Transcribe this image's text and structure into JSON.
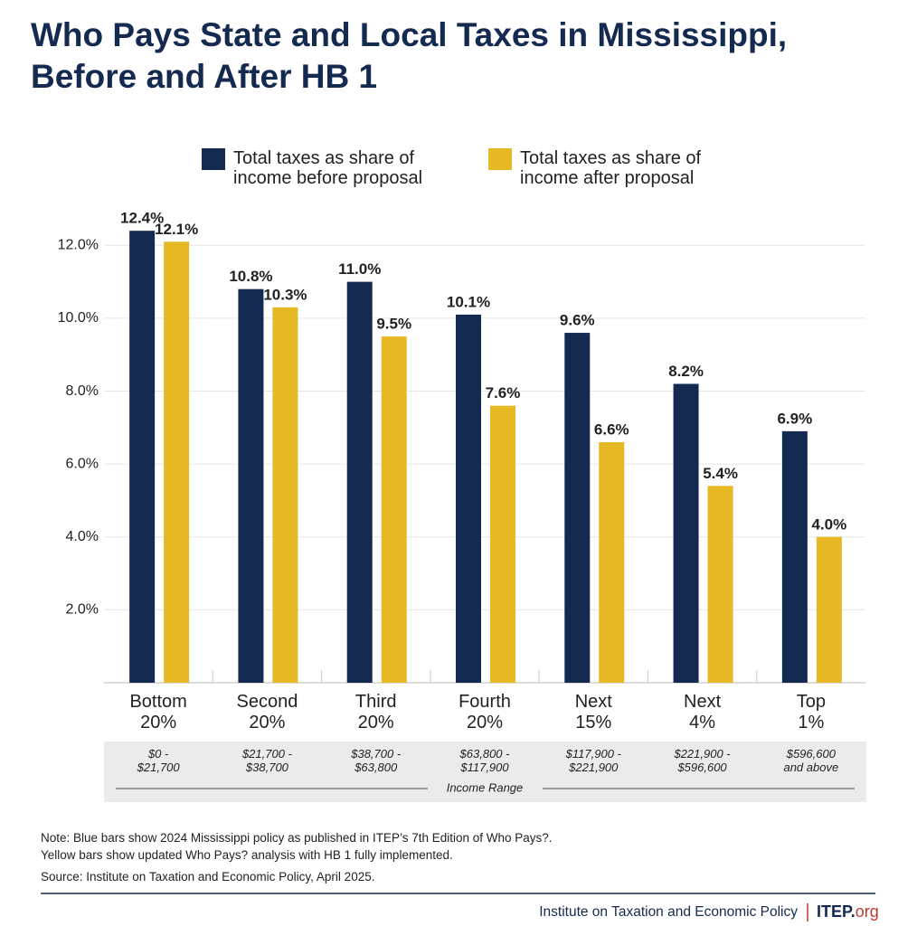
{
  "chart_data": {
    "type": "bar",
    "title": "Who Pays State and Local Taxes in Mississippi, Before and After HB 1",
    "categories": [
      "Bottom 20%",
      "Second 20%",
      "Third 20%",
      "Fourth 20%",
      "Next 15%",
      "Next 4%",
      "Top 1%"
    ],
    "income_ranges": [
      "$0 - $21,700",
      "$21,700 - $38,700",
      "$38,700 - $63,800",
      "$63,800 - $117,900",
      "$117,900 - $221,900",
      "$221,900 - $596,600",
      "$596,600 and above"
    ],
    "x_label": "Income Range",
    "series": [
      {
        "name": "Total taxes as share of income before proposal",
        "color": "#142a50",
        "values": [
          12.4,
          10.8,
          11.0,
          10.1,
          9.6,
          8.2,
          6.9
        ],
        "value_labels": [
          "12.4%",
          "10.8%",
          "11.0%",
          "10.1%",
          "9.6%",
          "8.2%",
          "6.9%"
        ]
      },
      {
        "name": "Total taxes as share of income after proposal",
        "color": "#e5b824",
        "values": [
          12.1,
          10.3,
          9.5,
          7.6,
          6.6,
          5.4,
          4.0
        ],
        "value_labels": [
          "12.1%",
          "10.3%",
          "9.5%",
          "7.6%",
          "6.6%",
          "5.4%",
          "4.0%"
        ]
      }
    ],
    "ylim": [
      0,
      13
    ],
    "yticks": [
      {
        "value": 2,
        "label": "2.0%"
      },
      {
        "value": 4,
        "label": "4.0%"
      },
      {
        "value": 6,
        "label": "6.0%"
      },
      {
        "value": 8,
        "label": "8.0%"
      },
      {
        "value": 10,
        "label": "10.0%"
      },
      {
        "value": 12,
        "label": "12.0%"
      }
    ],
    "grid": true,
    "notes": [
      "Note: Blue bars show 2024 Mississippi policy as published in ITEP’s 7th Edition of Who Pays?.",
      "Yellow bars show updated Who Pays? analysis with HB 1 fully implemented."
    ],
    "source": "Source: Institute on Taxation and Economic Policy, April 2025.",
    "footer": "Institute on Taxation and Economic Policy",
    "brand": [
      "ITEP.",
      "org"
    ]
  }
}
